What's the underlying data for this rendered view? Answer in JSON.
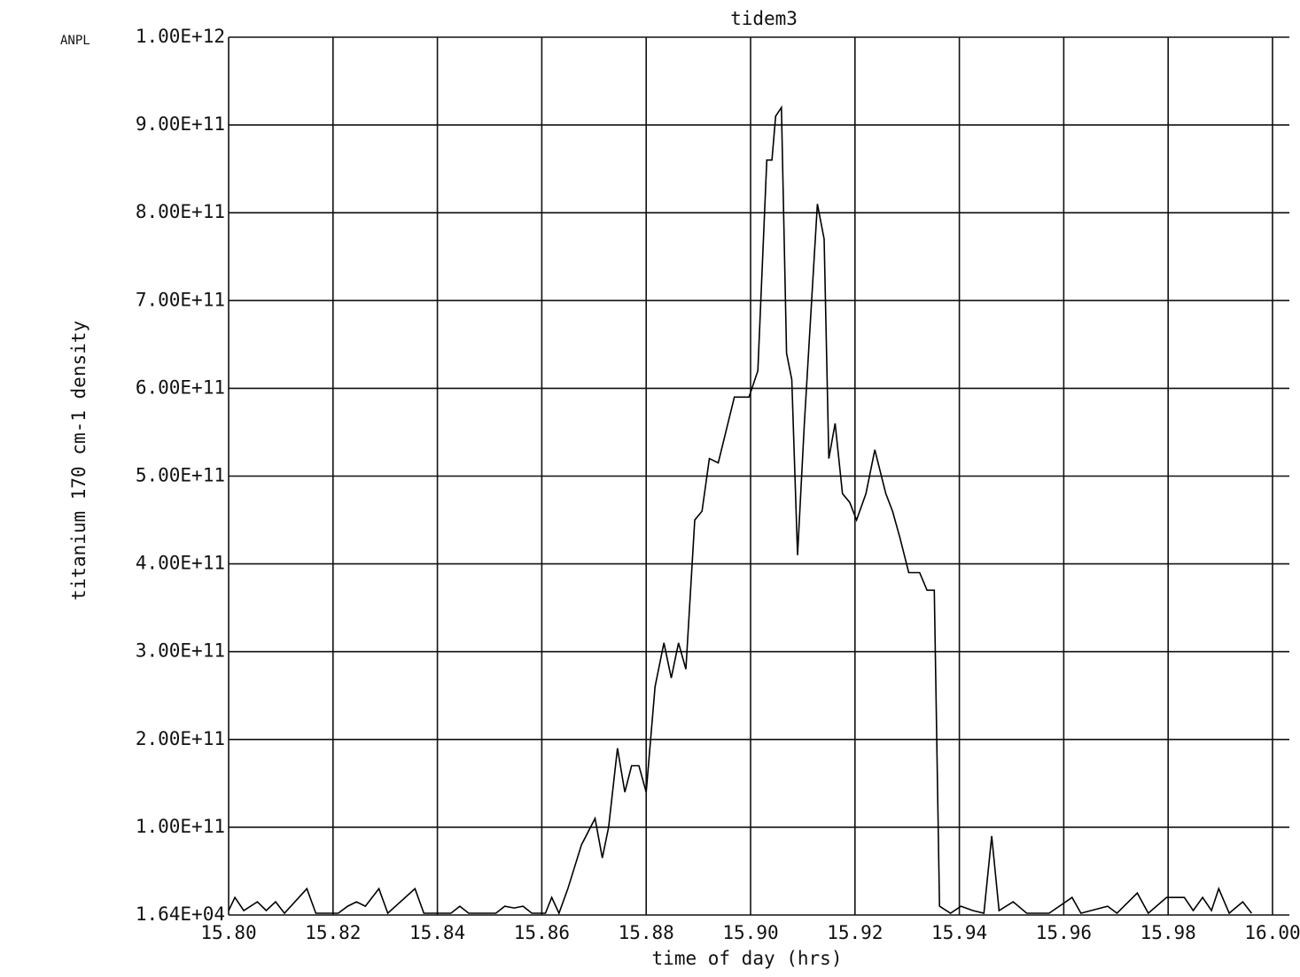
{
  "chart_data": {
    "type": "line",
    "title": "tidem3",
    "annotation": "ANPL",
    "x_label": "time of day (hrs)",
    "y_label": "titanium 170 cm-1 density",
    "color": "#000000",
    "grid": true,
    "xlim": [
      15.8,
      16.0
    ],
    "xticks": [
      {
        "value": 15.8,
        "label": "15.80"
      },
      {
        "value": 15.82,
        "label": "15.82"
      },
      {
        "value": 15.84,
        "label": "15.84"
      },
      {
        "value": 15.86,
        "label": "15.86"
      },
      {
        "value": 15.88,
        "label": "15.88"
      },
      {
        "value": 15.9,
        "label": "15.90"
      },
      {
        "value": 15.92,
        "label": "15.92"
      },
      {
        "value": 15.94,
        "label": "15.94"
      },
      {
        "value": 15.96,
        "label": "15.96"
      },
      {
        "value": 15.98,
        "label": "15.98"
      },
      {
        "value": 16.0,
        "label": "16.00"
      }
    ],
    "ylim": [
      16400,
      1000000000000.0
    ],
    "yticks": [
      {
        "value": 16400,
        "label": "1.64E+04"
      },
      {
        "value": 100000000000.0,
        "label": "1.00E+11"
      },
      {
        "value": 200000000000.0,
        "label": "2.00E+11"
      },
      {
        "value": 300000000000.0,
        "label": "3.00E+11"
      },
      {
        "value": 400000000000.0,
        "label": "4.00E+11"
      },
      {
        "value": 500000000000.0,
        "label": "5.00E+11"
      },
      {
        "value": 600000000000.0,
        "label": "6.00E+11"
      },
      {
        "value": 700000000000.0,
        "label": "7.00E+11"
      },
      {
        "value": 800000000000.0,
        "label": "8.00E+11"
      },
      {
        "value": 900000000000.0,
        "label": "9.00E+11"
      },
      {
        "value": 1000000000000.0,
        "label": "1.00E+12"
      }
    ],
    "x": [
      15.8,
      15.8012,
      15.8029,
      15.8055,
      15.8072,
      15.809,
      15.8107,
      15.815,
      15.8167,
      15.821,
      15.8228,
      15.8245,
      15.8262,
      15.8288,
      15.8305,
      15.8357,
      15.8374,
      15.8426,
      15.8443,
      15.846,
      15.8512,
      15.8529,
      15.8547,
      15.8564,
      15.8581,
      15.8607,
      15.8619,
      15.8633,
      15.865,
      15.8676,
      15.8702,
      15.8716,
      15.8728,
      15.8745,
      15.8759,
      15.8772,
      15.8786,
      15.88,
      15.8817,
      15.8834,
      15.8848,
      15.8862,
      15.8876,
      15.8893,
      15.8907,
      15.8921,
      15.8938,
      15.8969,
      15.8997,
      15.9014,
      15.9031,
      15.9041,
      15.9048,
      15.9059,
      15.9069,
      15.9079,
      15.909,
      15.9103,
      15.9117,
      15.9128,
      15.9141,
      15.915,
      15.9162,
      15.9176,
      15.919,
      15.9203,
      15.9221,
      15.9238,
      15.9259,
      15.9272,
      15.9286,
      15.9303,
      15.9324,
      15.9338,
      15.9352,
      15.9362,
      15.9383,
      15.9403,
      15.9426,
      15.9447,
      15.9462,
      15.9476,
      15.9503,
      15.9529,
      15.9572,
      15.9616,
      15.9633,
      15.9684,
      15.9702,
      15.9741,
      15.9762,
      15.9797,
      15.9831,
      15.9848,
      15.9866,
      15.9883,
      15.9897,
      15.9917,
      15.9943,
      15.996
    ],
    "values": [
      5000000000.0,
      20000000000.0,
      5000000000.0,
      15000000000.0,
      5000000000.0,
      15000000000.0,
      2000000000.0,
      30000000000.0,
      2000000000.0,
      2000000000.0,
      10000000000.0,
      15000000000.0,
      10000000000.0,
      30000000000.0,
      2000000000.0,
      30000000000.0,
      2000000000.0,
      2000000000.0,
      10000000000.0,
      2000000000.0,
      2000000000.0,
      10000000000.0,
      8000000000.0,
      10000000000.0,
      2000000000.0,
      2000000000.0,
      20000000000.0,
      2000000000.0,
      30000000000.0,
      80000000000.0,
      110000000000.0,
      65000000000.0,
      100000000000.0,
      190000000000.0,
      140000000000.0,
      170000000000.0,
      170000000000.0,
      140000000000.0,
      260000000000.0,
      310000000000.0,
      270000000000.0,
      310000000000.0,
      280000000000.0,
      450000000000.0,
      460000000000.0,
      520000000000.0,
      515000000000.0,
      590000000000.0,
      590000000000.0,
      620000000000.0,
      860000000000.0,
      860000000000.0,
      910000000000.0,
      920000000000.0,
      640000000000.0,
      610000000000.0,
      410000000000.0,
      560000000000.0,
      700000000000.0,
      810000000000.0,
      770000000000.0,
      520000000000.0,
      560000000000.0,
      480000000000.0,
      470000000000.0,
      450000000000.0,
      480000000000.0,
      530000000000.0,
      480000000000.0,
      460000000000.0,
      430000000000.0,
      390000000000.0,
      390000000000.0,
      370000000000.0,
      370000000000.0,
      10000000000.0,
      2000000000.0,
      10000000000.0,
      5000000000.0,
      2000000000.0,
      90000000000.0,
      5000000000.0,
      15000000000.0,
      2000000000.0,
      2000000000.0,
      20000000000.0,
      2000000000.0,
      10000000000.0,
      2000000000.0,
      25000000000.0,
      2000000000.0,
      20000000000.0,
      20000000000.0,
      5000000000.0,
      20000000000.0,
      5000000000.0,
      30000000000.0,
      2000000000.0,
      15000000000.0,
      2000000000.0
    ]
  }
}
